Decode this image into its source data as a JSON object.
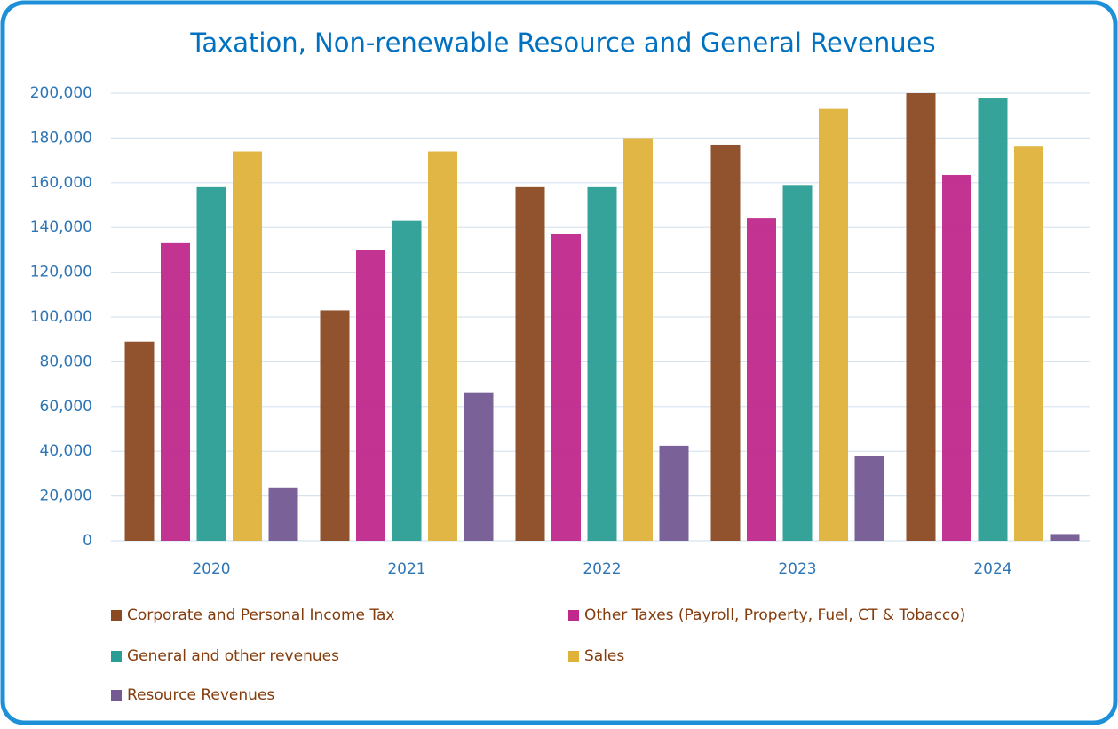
{
  "chart_data": {
    "type": "bar",
    "title": "Taxation, Non-renewable Resource and General Revenues",
    "categories": [
      "2020",
      "2021",
      "2022",
      "2023",
      "2024"
    ],
    "series": [
      {
        "name": "Corporate and Personal Income Tax",
        "color": "#8B4A22",
        "values": [
          89000,
          103000,
          158000,
          177000,
          200000
        ]
      },
      {
        "name": "Other Taxes (Payroll, Property, Fuel, CT & Tobacco)",
        "color": "#C0288C",
        "values": [
          133000,
          130000,
          137000,
          144000,
          163500
        ]
      },
      {
        "name": "General and other revenues",
        "color": "#2A9E94",
        "values": [
          158000,
          143000,
          158000,
          159000,
          198000
        ]
      },
      {
        "name": "Sales",
        "color": "#E0B23A",
        "values": [
          174000,
          174000,
          180000,
          193000,
          176500
        ]
      },
      {
        "name": "Resource Revenues",
        "color": "#735A93",
        "values": [
          23500,
          66000,
          42500,
          38000,
          3000
        ]
      }
    ],
    "ylim": [
      0,
      200000
    ],
    "yticks": [
      0,
      {
        "value": 20000,
        "label": "20,000"
      },
      {
        "value": 40000,
        "label": "40,000"
      },
      {
        "value": 60000,
        "label": "60,000"
      },
      {
        "value": 80000,
        "label": "80,000"
      },
      {
        "value": 100000,
        "label": "100,000"
      },
      {
        "value": 120000,
        "label": "120,000"
      },
      {
        "value": 140000,
        "label": "140,000"
      },
      {
        "value": 160000,
        "label": "160,000"
      },
      {
        "value": 180000,
        "label": "180,000"
      },
      {
        "value": 200000,
        "label": "200,000"
      }
    ],
    "grid": true,
    "legend": "bottom"
  }
}
